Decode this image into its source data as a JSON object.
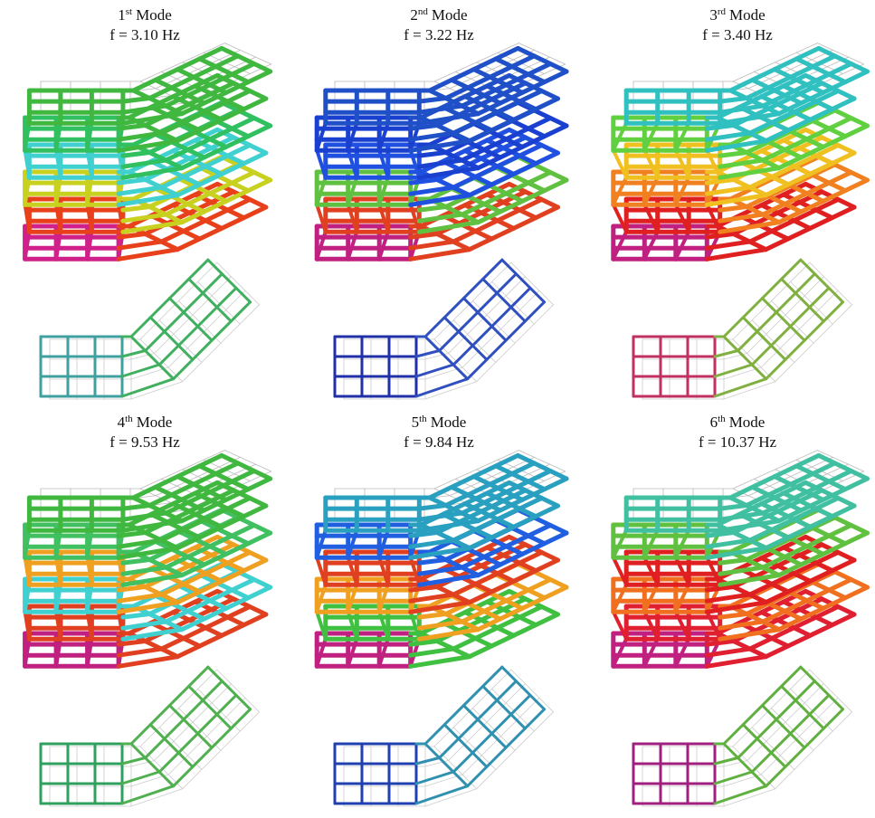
{
  "panels": [
    {
      "ordinal": "1",
      "suffix": "st",
      "word": "Mode",
      "frequency": "f = 3.10 Hz"
    },
    {
      "ordinal": "2",
      "suffix": "nd",
      "word": "Mode",
      "frequency": "f = 3.22 Hz"
    },
    {
      "ordinal": "3",
      "suffix": "rd",
      "word": "Mode",
      "frequency": "f = 3.40 Hz"
    },
    {
      "ordinal": "4",
      "suffix": "th",
      "word": "Mode",
      "frequency": "f = 9.53 Hz"
    },
    {
      "ordinal": "5",
      "suffix": "th",
      "word": "Mode",
      "frequency": "f = 9.84 Hz"
    },
    {
      "ordinal": "6",
      "suffix": "th",
      "word": "Mode",
      "frequency": "f = 10.37 Hz"
    }
  ]
}
